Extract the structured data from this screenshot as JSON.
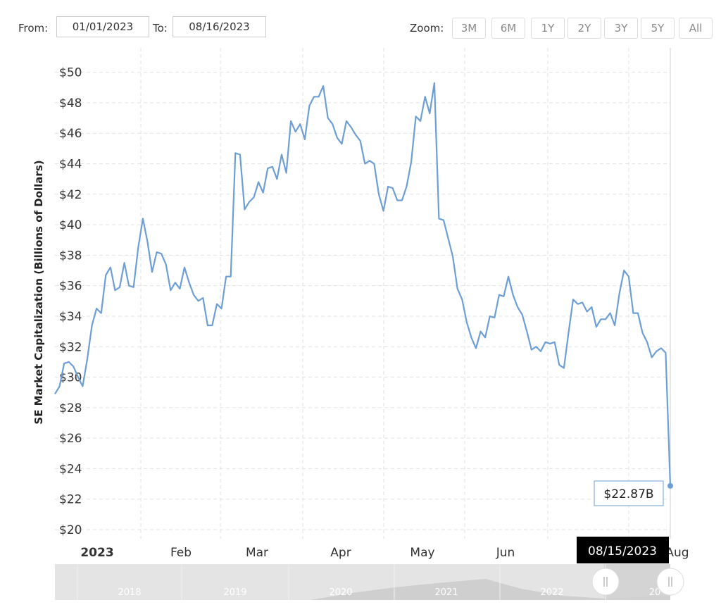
{
  "controls": {
    "from_label": "From:",
    "from_date": "01/01/2023",
    "to_label": "To:",
    "to_date": "08/16/2023",
    "zoom_label": "Zoom:",
    "zoom_buttons": [
      "3M",
      "6M",
      "1Y",
      "2Y",
      "3Y",
      "5Y",
      "All"
    ]
  },
  "chart_data": {
    "type": "line",
    "y_label": "SE Market Capitalization (Billions of Dollars)",
    "x_labels": [
      "2023",
      "Feb",
      "Mar",
      "Apr",
      "May",
      "Jun",
      "Aug"
    ],
    "series": [
      {
        "name": "SE Market Capitalization",
        "color": "#6d9fd6",
        "values": [
          28.9,
          29.4,
          30.9,
          31.0,
          30.7,
          30.0,
          29.4,
          31.2,
          33.4,
          34.5,
          34.2,
          36.7,
          37.2,
          35.7,
          35.9,
          37.5,
          36.0,
          35.9,
          38.5,
          40.4,
          38.9,
          36.9,
          38.2,
          38.1,
          37.4,
          35.7,
          36.2,
          35.8,
          37.2,
          36.2,
          35.4,
          35.0,
          35.2,
          33.4,
          33.4,
          34.8,
          34.5,
          36.6,
          36.6,
          44.7,
          44.6,
          41.0,
          41.5,
          41.8,
          42.8,
          42.1,
          43.7,
          43.8,
          43.0,
          44.6,
          43.4,
          46.8,
          46.1,
          46.6,
          45.6,
          47.8,
          48.4,
          48.4,
          49.1,
          47.0,
          46.6,
          45.7,
          45.3,
          46.8,
          46.4,
          45.9,
          45.5,
          44.0,
          44.2,
          44.0,
          42.0,
          40.9,
          42.5,
          42.4,
          41.6,
          41.6,
          42.5,
          44.1,
          47.1,
          46.8,
          48.4,
          47.3,
          49.3,
          40.4,
          40.3,
          39.1,
          37.9,
          35.8,
          35.1,
          33.6,
          32.6,
          31.9,
          33.0,
          32.6,
          34.0,
          33.9,
          35.4,
          35.3,
          36.6,
          35.4,
          34.6,
          34.1,
          33.0,
          31.8,
          32.0,
          31.7,
          32.3,
          32.2,
          32.3,
          30.8,
          30.6,
          32.9,
          35.1,
          34.8,
          34.9,
          34.3,
          34.6,
          33.3,
          33.8,
          33.8,
          34.2,
          33.4,
          35.5,
          37.0,
          36.6,
          34.2,
          34.2,
          32.9,
          32.3,
          31.3,
          31.7,
          31.9,
          31.6,
          22.87
        ]
      }
    ],
    "ylim": [
      19.4,
      51.6
    ],
    "yticks": [
      {
        "value": 20,
        "label": "$20"
      },
      {
        "value": 22,
        "label": "$22"
      },
      {
        "value": 24,
        "label": "$24"
      },
      {
        "value": 26,
        "label": "$26"
      },
      {
        "value": 28,
        "label": "$28"
      },
      {
        "value": 30,
        "label": "$30"
      },
      {
        "value": 32,
        "label": "$32"
      },
      {
        "value": 34,
        "label": "$34"
      },
      {
        "value": 36,
        "label": "$36"
      },
      {
        "value": 38,
        "label": "$38"
      },
      {
        "value": 40,
        "label": "$40"
      },
      {
        "value": 42,
        "label": "$42"
      },
      {
        "value": 44,
        "label": "$44"
      },
      {
        "value": 46,
        "label": "$46"
      },
      {
        "value": 48,
        "label": "$48"
      },
      {
        "value": 50,
        "label": "$50"
      }
    ],
    "grid": true,
    "last_value_label": "$22.87B",
    "tooltip_date": "08/15/2023"
  },
  "navigator": {
    "years": [
      "2018",
      "2019",
      "2020",
      "2021",
      "2022",
      "20"
    ]
  }
}
